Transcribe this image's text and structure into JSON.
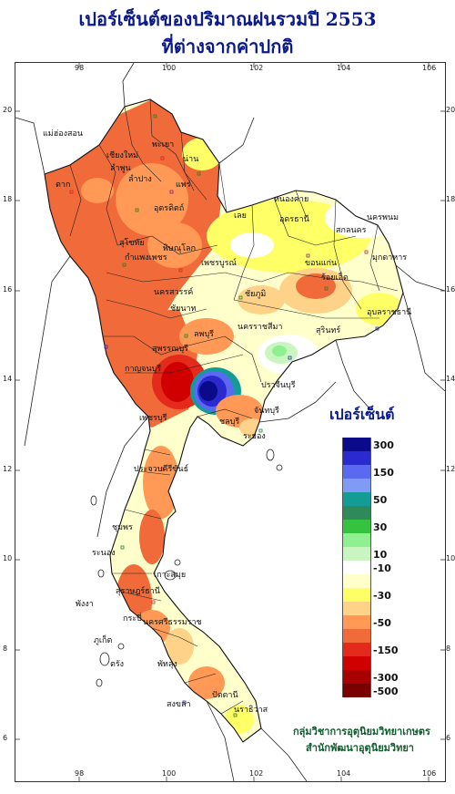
{
  "title_line1": "เปอร์เซ็นต์ของปริมาณฝนรวมปี  2553",
  "title_line2": "ที่ต่างจากค่าปกติ",
  "axis": {
    "top_lon": [
      "98",
      "100",
      "102",
      "104",
      "106"
    ],
    "bottom_lon": [
      "98",
      "100",
      "102",
      "104",
      "106"
    ],
    "left_lat": [
      "20",
      "18",
      "16",
      "14",
      "12",
      "10",
      "8",
      "6"
    ],
    "right_lat": [
      "20",
      "18",
      "16",
      "14",
      "12",
      "10",
      "8",
      "6"
    ]
  },
  "legend": {
    "title": "เปอร์เซ็นต์",
    "labels": [
      "300",
      "150",
      "50",
      "30",
      "10",
      "-10",
      "-30",
      "-50",
      "-150",
      "-300",
      "-500"
    ],
    "colors": [
      "#0a0a8a",
      "#2a2ad0",
      "#5a6af0",
      "#7f9bf5",
      "#139c96",
      "#2e8a5a",
      "#35c23f",
      "#8ef08e",
      "#c8f5c0",
      "#ffffff",
      "#ffffcc",
      "#ffff66",
      "#ffd28a",
      "#ff9955",
      "#f06a3a",
      "#e42a1a",
      "#d00000",
      "#a80000",
      "#7a0000"
    ]
  },
  "credit_line1": "กลุ่มวิชาการอุตุนิยมวิทยาเกษตร",
  "credit_line2": "สำนักพัฒนาอุตุนิยมวิทยา",
  "provinces": {
    "maehongson": "แม่ฮ่องสอน",
    "chiangmai": "เชียงใหม่",
    "lamphun": "ลำพูน",
    "lampang": "ลำปาง",
    "phayao": "พะเยา",
    "nan": "น่าน",
    "phrae": "แพร่",
    "uttaradit": "อุตรดิตถ์",
    "tak": "ตาก",
    "sukhothai": "สุโขทัย",
    "kamphaengphet": "กำแพงเพชร",
    "phitsanulok": "พิษณุโลก",
    "phetchabun": "เพชรบูรณ์",
    "nakhonsawan": "นครสวรรค์",
    "loei": "เลย",
    "nongkhai": "หนองคาย",
    "udonthani": "อุดรธานี",
    "sakonnakhon": "สกลนคร",
    "nakhonphanom": "นครพนม",
    "mukdahan": "มุกดาหาร",
    "khonkaen": "ขอนแก่น",
    "roiet": "ร้อยเอ็ด",
    "chaiyaphum": "ชัยภูมิ",
    "nakhonratchasima": "นครราชสีมา",
    "ubon": "อุบลราชธานี",
    "surin": "สุรินทร์",
    "chainat": "ชัยนาท",
    "lopburi": "ลพบุรี",
    "suphanburi": "สุพรรณบุรี",
    "kanchanaburi": "กาญจนบุรี",
    "prachinburi": "ปราจีนบุรี",
    "chonburi": "ชลบุรี",
    "rayong": "ระยอง",
    "chanthaburi": "จันทบุรี",
    "phetchaburi": "เพชรบุรี",
    "prachuap": "ประจวบคีรีขันธ์",
    "chumphon": "ชุมพร",
    "ranong": "ระนอง",
    "suratthani": "สุราษฎร์ธานี",
    "kosamui": "เกาะสมุย",
    "phangnga": "พังงา",
    "phuket": "ภูเก็ต",
    "krabi": "กระบี่",
    "nakhonsithammarat": "นครศรีธรรมราช",
    "trang": "ตรัง",
    "phatthalung": "พัทลุง",
    "songkhla": "สงขลา",
    "pattani": "ปัตตานี",
    "narathiwat": "นราธิวาส"
  }
}
